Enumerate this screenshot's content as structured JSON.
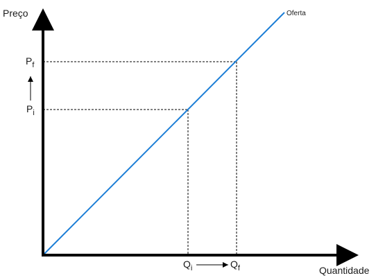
{
  "axes": {
    "y_label": "Preço",
    "x_label": "Quantidade"
  },
  "curve": {
    "name": "Oferta",
    "color": "#1c7ed6"
  },
  "price_marks": {
    "final": {
      "main": "P",
      "sub": "f"
    },
    "initial": {
      "main": "P",
      "sub": "i"
    }
  },
  "quantity_marks": {
    "initial": {
      "main": "Q",
      "sub": "i"
    },
    "final": {
      "main": "Q",
      "sub": "f"
    }
  },
  "colors": {
    "axis": "#000000",
    "guide": "#000000",
    "text": "#1a1a1a"
  }
}
